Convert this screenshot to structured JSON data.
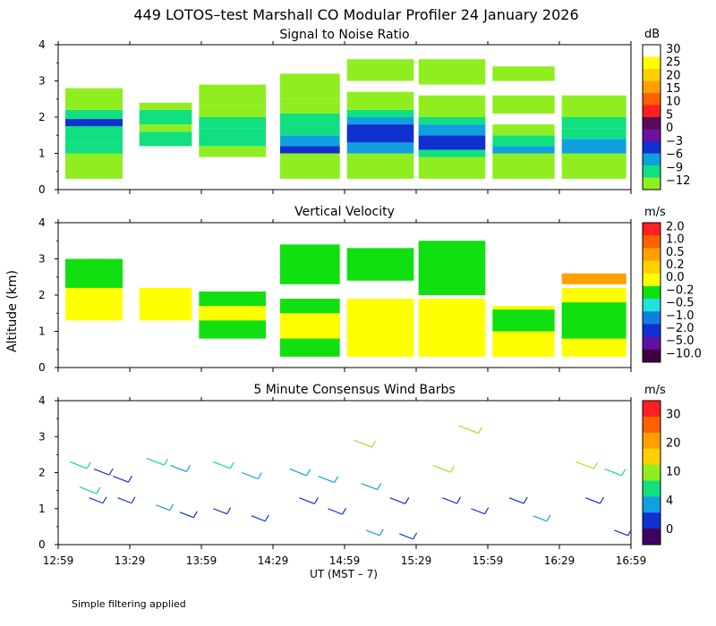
{
  "title": "449 LOTOS–test Marshall CO Modular Profiler 24 January 2026",
  "ylabel": "Altitude (km)",
  "xlabel": "UT  (MST – 7)",
  "footnote": "Simple filtering applied",
  "x_ticks": [
    "12:59",
    "13:29",
    "13:59",
    "14:29",
    "14:59",
    "15:29",
    "15:59",
    "16:29",
    "16:59"
  ],
  "chart_data": [
    {
      "type": "heatmap",
      "title": "Signal to Noise Ratio",
      "ylim": [
        0,
        4
      ],
      "y_ticks": [
        "0",
        "1",
        "2",
        "3",
        "4"
      ],
      "colorbar": {
        "unit": "dB",
        "labels": [
          "30",
          "25",
          "20",
          "15",
          "10",
          "5",
          "0",
          "−3",
          "−6",
          "−9",
          "−12"
        ],
        "colors": [
          "#ffffff",
          "#ffff00",
          "#ffd000",
          "#ffa000",
          "#ff6000",
          "#ff2020",
          "#5a0a5a",
          "#7010a0",
          "#1030d0",
          "#10a0e0",
          "#10e080",
          "#90ee20"
        ]
      },
      "segments": [
        {
          "start": "13:02",
          "end": "13:26",
          "profile": [
            [
              0.3,
              1.0,
              "#90ee20"
            ],
            [
              1.0,
              1.3,
              "#10e080"
            ],
            [
              1.3,
              1.75,
              "#10e080"
            ],
            [
              1.75,
              1.95,
              "#1030d0"
            ],
            [
              1.95,
              2.2,
              "#10e080"
            ],
            [
              2.2,
              2.8,
              "#90ee20"
            ]
          ]
        },
        {
          "start": "13:33",
          "end": "13:55",
          "profile": [
            [
              1.2,
              1.6,
              "#10e080"
            ],
            [
              1.6,
              1.8,
              "#90ee20"
            ],
            [
              1.8,
              2.2,
              "#10e080"
            ],
            [
              2.2,
              2.4,
              "#90ee20"
            ]
          ]
        },
        {
          "start": "13:58",
          "end": "14:26",
          "profile": [
            [
              0.9,
              1.2,
              "#90ee20"
            ],
            [
              1.2,
              1.7,
              "#10e080"
            ],
            [
              1.7,
              2.0,
              "#10e080"
            ],
            [
              2.0,
              2.3,
              "#90ee20"
            ],
            [
              2.3,
              2.9,
              "#90ee20"
            ]
          ]
        },
        {
          "start": "14:32",
          "end": "14:57",
          "profile": [
            [
              0.3,
              1.0,
              "#90ee20"
            ],
            [
              1.0,
              1.2,
              "#1030d0"
            ],
            [
              1.2,
              1.5,
              "#10a0e0"
            ],
            [
              1.5,
              1.9,
              "#10e080"
            ],
            [
              1.9,
              2.1,
              "#10e080"
            ],
            [
              2.1,
              2.5,
              "#90ee20"
            ],
            [
              2.5,
              3.2,
              "#90ee20"
            ]
          ]
        },
        {
          "start": "15:00",
          "end": "15:28",
          "profile": [
            [
              0.3,
              1.0,
              "#90ee20"
            ],
            [
              1.0,
              1.3,
              "#10a0e0"
            ],
            [
              1.3,
              1.8,
              "#1030d0"
            ],
            [
              1.8,
              2.0,
              "#10a0e0"
            ],
            [
              2.0,
              2.2,
              "#10e080"
            ],
            [
              2.2,
              2.7,
              "#90ee20"
            ],
            [
              3.0,
              3.6,
              "#90ee20"
            ]
          ]
        },
        {
          "start": "15:30",
          "end": "15:58",
          "profile": [
            [
              0.3,
              0.9,
              "#90ee20"
            ],
            [
              0.9,
              1.1,
              "#10e080"
            ],
            [
              1.1,
              1.5,
              "#1030d0"
            ],
            [
              1.5,
              1.8,
              "#10a0e0"
            ],
            [
              1.8,
              2.0,
              "#10e080"
            ],
            [
              2.0,
              2.6,
              "#90ee20"
            ],
            [
              2.9,
              3.6,
              "#90ee20"
            ]
          ]
        },
        {
          "start": "16:01",
          "end": "16:27",
          "profile": [
            [
              0.3,
              1.0,
              "#90ee20"
            ],
            [
              1.0,
              1.2,
              "#10a0e0"
            ],
            [
              1.2,
              1.5,
              "#10e080"
            ],
            [
              1.5,
              1.8,
              "#90ee20"
            ],
            [
              2.1,
              2.6,
              "#90ee20"
            ],
            [
              3.0,
              3.4,
              "#90ee20"
            ]
          ]
        },
        {
          "start": "16:30",
          "end": "16:57",
          "profile": [
            [
              0.3,
              1.0,
              "#90ee20"
            ],
            [
              1.0,
              1.4,
              "#10a0e0"
            ],
            [
              1.4,
              1.7,
              "#10e080"
            ],
            [
              1.7,
              2.0,
              "#10e080"
            ],
            [
              2.0,
              2.6,
              "#90ee20"
            ]
          ]
        }
      ]
    },
    {
      "type": "heatmap",
      "title": "Vertical Velocity",
      "ylim": [
        0,
        4
      ],
      "y_ticks": [
        "0",
        "1",
        "2",
        "3",
        "4"
      ],
      "colorbar": {
        "unit": "m/s",
        "labels": [
          "2.0",
          "1.0",
          "0.5",
          "0.2",
          "0.0",
          "−0.2",
          "−0.5",
          "−1.0",
          "−2.0",
          "−5.0",
          "−10.0"
        ],
        "colors": [
          "#ff2020",
          "#ff6000",
          "#ffa000",
          "#ffd000",
          "#ffff00",
          "#10e010",
          "#20e0e0",
          "#1080e0",
          "#1030d0",
          "#6010a0",
          "#400040"
        ]
      },
      "segments": [
        {
          "start": "13:02",
          "end": "13:26",
          "profile": [
            [
              1.3,
              2.2,
              "#ffff00"
            ],
            [
              2.2,
              3.0,
              "#10e010"
            ]
          ]
        },
        {
          "start": "13:33",
          "end": "13:55",
          "profile": [
            [
              1.3,
              2.2,
              "#ffff00"
            ]
          ]
        },
        {
          "start": "13:58",
          "end": "14:26",
          "profile": [
            [
              0.8,
              2.1,
              "#10e010"
            ],
            [
              1.3,
              1.7,
              "#ffff00"
            ]
          ]
        },
        {
          "start": "14:32",
          "end": "14:57",
          "profile": [
            [
              0.3,
              1.9,
              "#10e010"
            ],
            [
              0.8,
              1.5,
              "#ffff00"
            ],
            [
              2.3,
              3.4,
              "#10e010"
            ]
          ]
        },
        {
          "start": "15:00",
          "end": "15:28",
          "profile": [
            [
              0.3,
              1.9,
              "#ffff00"
            ],
            [
              2.4,
              3.3,
              "#10e010"
            ]
          ]
        },
        {
          "start": "15:30",
          "end": "15:58",
          "profile": [
            [
              0.3,
              1.9,
              "#ffff00"
            ],
            [
              2.0,
              3.5,
              "#10e010"
            ]
          ]
        },
        {
          "start": "16:01",
          "end": "16:27",
          "profile": [
            [
              0.3,
              1.7,
              "#ffff00"
            ],
            [
              1.0,
              1.6,
              "#10e010"
            ]
          ]
        },
        {
          "start": "16:30",
          "end": "16:57",
          "profile": [
            [
              0.3,
              2.2,
              "#ffff00"
            ],
            [
              0.8,
              1.8,
              "#10e010"
            ],
            [
              2.3,
              2.6,
              "#ffa000"
            ]
          ]
        }
      ]
    },
    {
      "type": "wind-barbs",
      "title": "5 Minute Consensus Wind Barbs",
      "ylim": [
        0,
        4
      ],
      "y_ticks": [
        "0",
        "1",
        "2",
        "3",
        "4"
      ],
      "colorbar": {
        "unit": "m/s",
        "labels": [
          "30",
          "20",
          "10",
          "4",
          "0"
        ],
        "colors": [
          "#ff2020",
          "#ff6000",
          "#ffa000",
          "#ffd000",
          "#90ee20",
          "#10e080",
          "#10a0e0",
          "#1030d0",
          "#400060"
        ]
      },
      "barbs": [
        {
          "time": "13:04",
          "alt": 2.3,
          "speed": 7,
          "color": "#10e080"
        },
        {
          "time": "13:14",
          "alt": 2.1,
          "speed": 5,
          "color": "#1030d0"
        },
        {
          "time": "13:22",
          "alt": 1.9,
          "speed": 5,
          "color": "#1030d0"
        },
        {
          "time": "13:08",
          "alt": 1.6,
          "speed": 7,
          "color": "#10e080"
        },
        {
          "time": "13:12",
          "alt": 1.3,
          "speed": 3,
          "color": "#1030d0"
        },
        {
          "time": "13:24",
          "alt": 1.3,
          "speed": 3,
          "color": "#1030d0"
        },
        {
          "time": "13:36",
          "alt": 2.4,
          "speed": 8,
          "color": "#10e080"
        },
        {
          "time": "13:46",
          "alt": 2.2,
          "speed": 6,
          "color": "#10a0e0"
        },
        {
          "time": "13:40",
          "alt": 1.1,
          "speed": 3,
          "color": "#10a0e0"
        },
        {
          "time": "13:50",
          "alt": 0.9,
          "speed": 3,
          "color": "#1030d0"
        },
        {
          "time": "14:04",
          "alt": 2.3,
          "speed": 7,
          "color": "#10e080"
        },
        {
          "time": "14:16",
          "alt": 2.0,
          "speed": 6,
          "color": "#10a0e0"
        },
        {
          "time": "14:04",
          "alt": 1.0,
          "speed": 3,
          "color": "#1030d0"
        },
        {
          "time": "14:20",
          "alt": 0.8,
          "speed": 3,
          "color": "#1030d0"
        },
        {
          "time": "14:36",
          "alt": 2.1,
          "speed": 7,
          "color": "#10a0e0"
        },
        {
          "time": "14:48",
          "alt": 1.9,
          "speed": 6,
          "color": "#10a0e0"
        },
        {
          "time": "14:40",
          "alt": 1.3,
          "speed": 5,
          "color": "#1030d0"
        },
        {
          "time": "14:52",
          "alt": 1.0,
          "speed": 4,
          "color": "#1030d0"
        },
        {
          "time": "15:03",
          "alt": 2.9,
          "speed": 8,
          "color": "#90ee20"
        },
        {
          "time": "15:06",
          "alt": 1.7,
          "speed": 6,
          "color": "#10a0e0"
        },
        {
          "time": "15:18",
          "alt": 1.3,
          "speed": 5,
          "color": "#1030d0"
        },
        {
          "time": "15:08",
          "alt": 0.4,
          "speed": 3,
          "color": "#10a0e0"
        },
        {
          "time": "15:22",
          "alt": 0.3,
          "speed": 3,
          "color": "#1030d0"
        },
        {
          "time": "15:36",
          "alt": 2.2,
          "speed": 8,
          "color": "#90ee20"
        },
        {
          "time": "15:47",
          "alt": 3.3,
          "speed": 10,
          "color": "#90ee20"
        },
        {
          "time": "15:40",
          "alt": 1.3,
          "speed": 4,
          "color": "#1030d0"
        },
        {
          "time": "15:52",
          "alt": 1.0,
          "speed": 3,
          "color": "#1030d0"
        },
        {
          "time": "16:08",
          "alt": 1.3,
          "speed": 4,
          "color": "#1030d0"
        },
        {
          "time": "16:18",
          "alt": 0.8,
          "speed": 3,
          "color": "#10a0e0"
        },
        {
          "time": "16:36",
          "alt": 2.3,
          "speed": 8,
          "color": "#90ee20"
        },
        {
          "time": "16:48",
          "alt": 2.1,
          "speed": 7,
          "color": "#10e080"
        },
        {
          "time": "16:40",
          "alt": 1.3,
          "speed": 4,
          "color": "#1030d0"
        },
        {
          "time": "16:52",
          "alt": 0.4,
          "speed": 3,
          "color": "#1030d0"
        }
      ]
    }
  ]
}
